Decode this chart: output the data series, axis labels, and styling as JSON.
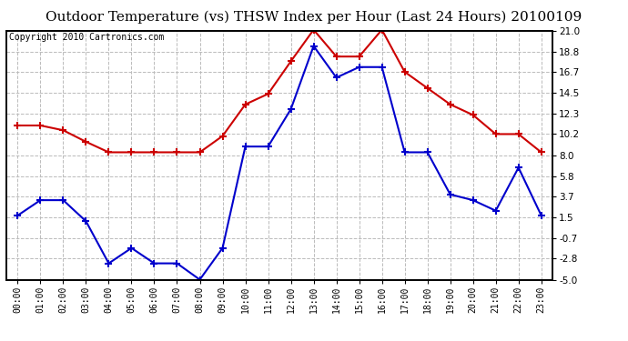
{
  "title": "Outdoor Temperature (vs) THSW Index per Hour (Last 24 Hours) 20100109",
  "copyright": "Copyright 2010 Cartronics.com",
  "hours": [
    "00:00",
    "01:00",
    "02:00",
    "03:00",
    "04:00",
    "05:00",
    "06:00",
    "07:00",
    "08:00",
    "09:00",
    "10:00",
    "11:00",
    "12:00",
    "13:00",
    "14:00",
    "15:00",
    "16:00",
    "17:00",
    "18:00",
    "19:00",
    "20:00",
    "21:00",
    "22:00",
    "23:00"
  ],
  "temp_red": [
    11.1,
    11.1,
    10.6,
    9.4,
    8.3,
    8.3,
    8.3,
    8.3,
    8.3,
    10.0,
    13.3,
    14.4,
    17.8,
    21.1,
    18.3,
    18.3,
    21.1,
    16.7,
    15.0,
    13.3,
    12.2,
    10.2,
    10.2,
    8.3
  ],
  "thsw_blue": [
    1.7,
    3.3,
    3.3,
    1.1,
    -3.3,
    -1.7,
    -3.3,
    -3.3,
    -5.0,
    -1.7,
    8.9,
    8.9,
    12.8,
    19.4,
    16.1,
    17.2,
    17.2,
    8.3,
    8.3,
    3.9,
    3.3,
    2.2,
    6.7,
    1.7
  ],
  "ylim": [
    -5.0,
    21.0
  ],
  "yticks_right": [
    21.0,
    18.8,
    16.7,
    14.5,
    12.3,
    10.2,
    8.0,
    5.8,
    3.7,
    1.5,
    -0.7,
    -2.8,
    -5.0
  ],
  "background_color": "#ffffff",
  "grid_color": "#bbbbbb",
  "red_color": "#cc0000",
  "blue_color": "#0000cc",
  "title_fontsize": 11,
  "copyright_fontsize": 7
}
